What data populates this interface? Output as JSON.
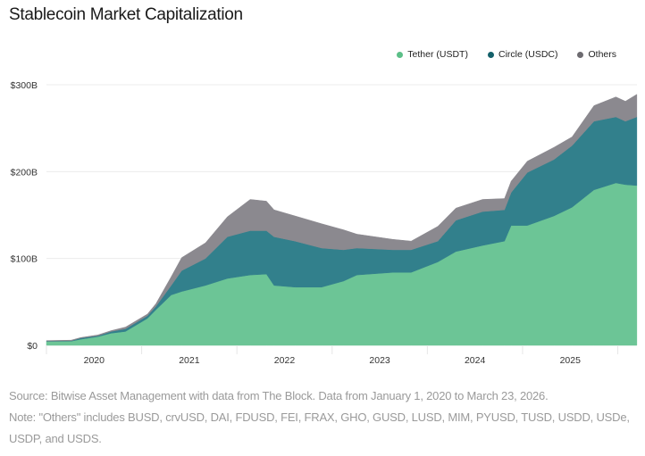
{
  "chart_data": {
    "type": "area",
    "stacked": true,
    "title": "Stablecoin Market Capitalization",
    "xlabel": "",
    "ylabel": "",
    "ylim": [
      0,
      300
    ],
    "xlim": [
      2020.0,
      2026.22
    ],
    "y_ticks": [
      "$0",
      "$100B",
      "$200B",
      "$300B"
    ],
    "y_tick_values": [
      0,
      100,
      200,
      300
    ],
    "x_ticks": [
      "2020",
      "2021",
      "2022",
      "2023",
      "2024",
      "2025"
    ],
    "grid": true,
    "legend_position": "top-right",
    "x": [
      2020.0,
      2020.26,
      2020.36,
      2020.54,
      2020.68,
      2020.83,
      2021.06,
      2021.15,
      2021.31,
      2021.42,
      2021.67,
      2021.9,
      2022.14,
      2022.31,
      2022.39,
      2022.61,
      2022.89,
      2023.12,
      2023.26,
      2023.64,
      2023.83,
      2024.11,
      2024.3,
      2024.58,
      2024.81,
      2024.88,
      2025.05,
      2025.33,
      2025.52,
      2025.75,
      2025.98,
      2026.08,
      2026.2
    ],
    "series": [
      {
        "name": "Tether (USDT)",
        "color": "#6cc596",
        "legend_color": "#5cbf88",
        "values": [
          4.5,
          4.8,
          7,
          10,
          14,
          16,
          31,
          41,
          58,
          62,
          69,
          77,
          81,
          82,
          69,
          67,
          67,
          74,
          81,
          84,
          84,
          96,
          108,
          115,
          120,
          138,
          138,
          149,
          159,
          179,
          187,
          185,
          184
        ]
      },
      {
        "name": "Circle (USDC)",
        "color": "#32808c",
        "legend_color": "#14606a",
        "values": [
          0.5,
          0.5,
          1.5,
          1,
          2,
          3,
          3,
          4,
          11,
          24,
          31,
          48,
          51,
          50,
          56,
          53,
          45,
          36,
          31,
          26,
          26,
          24,
          36,
          39,
          36,
          38,
          61,
          65,
          71,
          79,
          76,
          73,
          79
        ]
      },
      {
        "name": "Others",
        "color": "#8b898f",
        "legend_color": "#6d6b70",
        "values": [
          0.5,
          0.7,
          0.5,
          1,
          1,
          2,
          2,
          3,
          10,
          15,
          18,
          23,
          36,
          34,
          31,
          29,
          28,
          23,
          16,
          12,
          10,
          17,
          14,
          14,
          13,
          13,
          13,
          14,
          10,
          18,
          23,
          23,
          26
        ]
      }
    ]
  },
  "notes": {
    "source": "Source: Bitwise Asset Management with data from The Block. Data from January 1, 2020 to March 23, 2026.",
    "note": "Note: \"Others\" includes BUSD, crvUSD, DAI, FDUSD, FEI, FRAX, GHO, GUSD, LUSD, MIM, PYUSD, TUSD, USDD, USDe, USDP, and USDS."
  }
}
